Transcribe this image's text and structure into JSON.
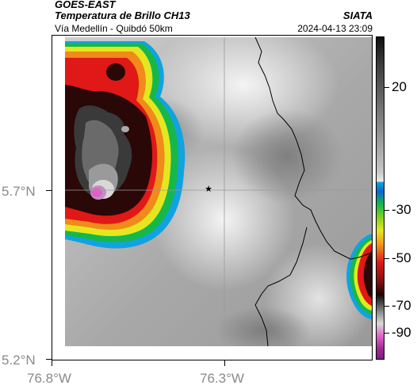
{
  "header": {
    "satellite": "GOES-EAST",
    "product": "Temperatura de Brillo CH13",
    "route": "Vía Medellín - Quibdó 50km",
    "org": "SIATA",
    "timestamp": "2024-04-13 23:09"
  },
  "axes": {
    "lat_labels": [
      "5.7°N",
      "5.2°N"
    ],
    "lon_labels": [
      "76.8°W",
      "76.3°W"
    ]
  },
  "colorbar": {
    "ticks": [
      "20",
      "-30",
      "-50",
      "-70",
      "-90"
    ]
  },
  "marker": {
    "icon": "star-icon"
  },
  "colors": {
    "border_line": "#000000",
    "grid": "#9a9a9a"
  }
}
